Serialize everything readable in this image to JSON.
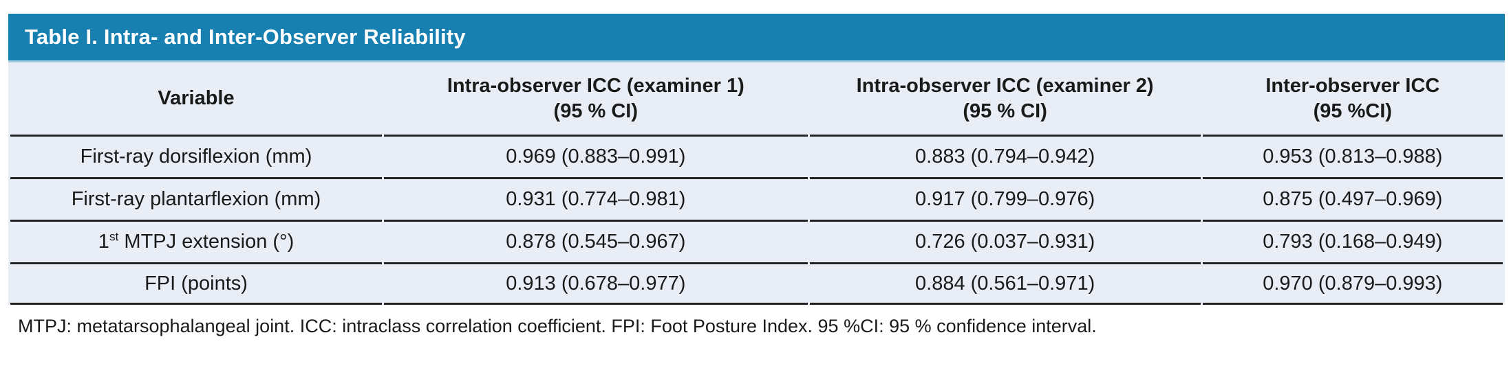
{
  "table": {
    "title": "Table I. Intra- and Inter-Observer Reliability",
    "columns": [
      {
        "label_line1": "Variable",
        "label_line2": ""
      },
      {
        "label_line1": "Intra-observer ICC (examiner 1)",
        "label_line2": "(95 % CI)"
      },
      {
        "label_line1": "Intra-observer ICC (examiner 2)",
        "label_line2": "(95 % CI)"
      },
      {
        "label_line1": "Inter-observer ICC",
        "label_line2": "(95 %CI)"
      }
    ],
    "rows": [
      {
        "variable": "First-ray dorsiflexion (mm)",
        "icc_examiner1": "0.969 (0.883–0.991)",
        "icc_examiner2": "0.883 (0.794–0.942)",
        "inter_icc": "0.953 (0.813–0.988)"
      },
      {
        "variable": "First-ray plantarflexion (mm)",
        "icc_examiner1": "0.931 (0.774–0.981)",
        "icc_examiner2": "0.917 (0.799–0.976)",
        "inter_icc": "0.875 (0.497–0.969)"
      },
      {
        "variable_base": "1",
        "variable_sup": "st",
        "variable_rest": " MTPJ extension (°)",
        "icc_examiner1": "0.878 (0.545–0.967)",
        "icc_examiner2": "0.726 (0.037–0.931)",
        "inter_icc": "0.793 (0.168–0.949)"
      },
      {
        "variable": "FPI (points)",
        "icc_examiner1": "0.913 (0.678–0.977)",
        "icc_examiner2": "0.884 (0.561–0.971)",
        "inter_icc": "0.970 (0.879–0.993)"
      }
    ],
    "footnote": "MTPJ: metatarsophalangeal joint. ICC: intraclass correlation coefficient. FPI: Foot Posture Index. 95 %CI: 95 % confidence interval."
  },
  "colors": {
    "title_bar_background": "#1780b0",
    "title_text": "#ffffff",
    "body_background": "#e9edf6",
    "title_separator": "#a9cfe3",
    "row_divider": "#222222",
    "text": "#1a1a1a"
  }
}
